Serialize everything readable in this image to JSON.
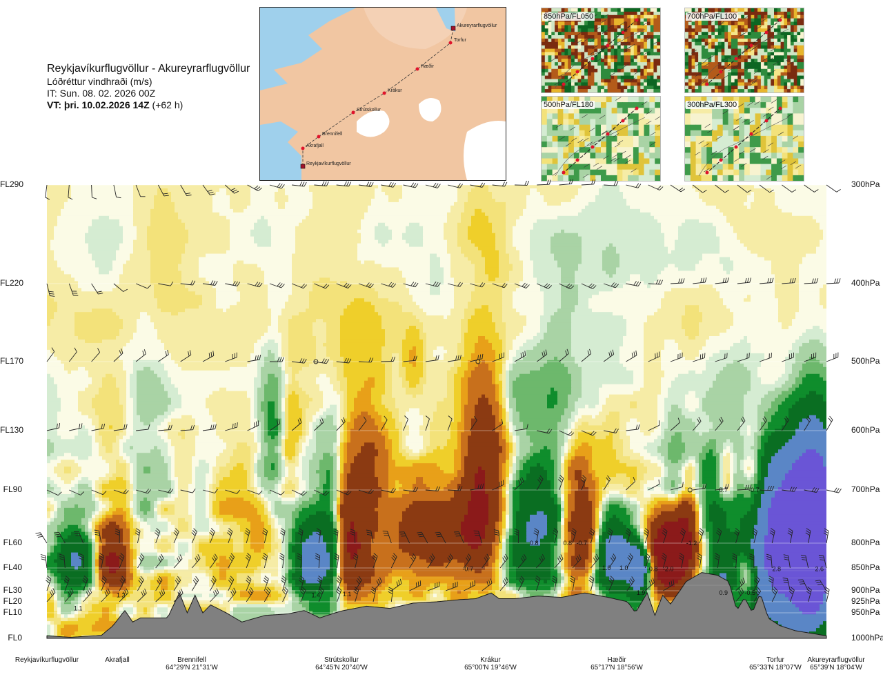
{
  "header": {
    "route": "Reykjavíkurflugvöllur - Akureyrarflugvöllur",
    "variable": "Lóðréttur vindhraði (m/s)",
    "issue_time": "IT: Sun. 08. 02. 2026 00Z",
    "valid_time": "VT: þri. 10.02.2026 14Z",
    "lead_time": "(+62 h)"
  },
  "route_map": {
    "waypoints": [
      "Akureyrarflugvöllur",
      "Torfur",
      "Hæðir",
      "Krákur",
      "Strútskollur",
      "Brennifell",
      "Akrafjall",
      "Reykjavíkurflugvöllur"
    ]
  },
  "insets": [
    {
      "label": "850hPa/FL050"
    },
    {
      "label": "700hPa/FL100"
    },
    {
      "label": "500hPa/FL180"
    },
    {
      "label": "300hPa/FL300"
    }
  ],
  "chart_data": {
    "type": "heatmap",
    "title": "Lóðréttur vindhraði (m/s)",
    "y_flight_levels": [
      {
        "label": "FL290",
        "pressure_hpa": 300
      },
      {
        "label": "FL220",
        "pressure_hpa": 400
      },
      {
        "label": "FL170",
        "pressure_hpa": 500
      },
      {
        "label": "FL130",
        "pressure_hpa": 600
      },
      {
        "label": "FL90",
        "pressure_hpa": 700
      },
      {
        "label": "FL60",
        "pressure_hpa": 800
      },
      {
        "label": "FL40",
        "pressure_hpa": 850
      },
      {
        "label": "FL30",
        "pressure_hpa": 900
      },
      {
        "label": "FL20",
        "pressure_hpa": 925
      },
      {
        "label": "FL10",
        "pressure_hpa": 950
      },
      {
        "label": "FL0",
        "pressure_hpa": 1000
      }
    ],
    "y_pressure_labels": [
      "300hPa",
      "400hPa",
      "500hPa",
      "600hPa",
      "700hPa",
      "800hPa",
      "850hPa",
      "900hPa",
      "925hPa",
      "950hPa",
      "1000hPa"
    ],
    "ylim_hpa": [
      1000,
      300
    ],
    "x_locations": [
      {
        "name": "Reykjavíkurflugvöllur",
        "coord": "",
        "frac": 0.0
      },
      {
        "name": "Akrafjall",
        "coord": "",
        "frac": 0.09
      },
      {
        "name": "Brennifell",
        "coord": "64°29'N 21°31'W",
        "frac": 0.19
      },
      {
        "name": "Strútskollur",
        "coord": "64°45'N 20°40'W",
        "frac": 0.37
      },
      {
        "name": "Krákur",
        "coord": "65°00'N 19°46'W",
        "frac": 0.57
      },
      {
        "name": "Hæðir",
        "coord": "65°17'N 18°56'W",
        "frac": 0.75
      },
      {
        "name": "Torfur",
        "coord": "65°33'N 18°07'W",
        "frac": 0.94
      },
      {
        "name": "Akureyrarflugvöllur",
        "coord": "65°39'N 18°04'W",
        "frac": 1.0
      }
    ],
    "color_levels": [
      {
        "min": -3.0,
        "max": -1.0,
        "color": "#8b1a1a"
      },
      {
        "min": -1.0,
        "max": -0.5,
        "color": "#8b3a12"
      },
      {
        "min": -0.5,
        "max": -0.3,
        "color": "#c8701c"
      },
      {
        "min": -0.3,
        "max": -0.2,
        "color": "#e8a019"
      },
      {
        "min": -0.2,
        "max": -0.1,
        "color": "#efcf2a"
      },
      {
        "min": -0.1,
        "max": -0.05,
        "color": "#f3e27a"
      },
      {
        "min": -0.05,
        "max": 0.0,
        "color": "#f6eca6"
      },
      {
        "min": 0.0,
        "max": 0.05,
        "color": "#fbfbe6"
      },
      {
        "min": 0.05,
        "max": 0.1,
        "color": "#d5ecd2"
      },
      {
        "min": 0.1,
        "max": 0.2,
        "color": "#a9d3a5"
      },
      {
        "min": 0.2,
        "max": 0.3,
        "color": "#6db86c"
      },
      {
        "min": 0.3,
        "max": 0.5,
        "color": "#0f8d2c"
      },
      {
        "min": 0.5,
        "max": 1.0,
        "color": "#0a6e22"
      },
      {
        "min": 1.0,
        "max": 2.0,
        "color": "#5a86c6"
      },
      {
        "min": 2.0,
        "max": 5.0,
        "color": "#6a55d6"
      }
    ],
    "annotations": [
      {
        "text": "1.1",
        "frac": 0.04,
        "hpa": 940
      },
      {
        "text": "1.2",
        "frac": 0.095,
        "hpa": 910
      },
      {
        "text": "1.4",
        "frac": 0.345,
        "hpa": 910
      },
      {
        "text": "1.1",
        "frac": 0.385,
        "hpa": 908
      },
      {
        "text": "-0.7",
        "frac": 0.54,
        "hpa": 852
      },
      {
        "text": "0.8",
        "frac": 0.625,
        "hpa": 800
      },
      {
        "text": "0.8",
        "frac": 0.668,
        "hpa": 800
      },
      {
        "text": "-0.7",
        "frac": 0.686,
        "hpa": 800
      },
      {
        "text": "1.0",
        "frac": 0.718,
        "hpa": 850
      },
      {
        "text": "1.0",
        "frac": 0.74,
        "hpa": 850
      },
      {
        "text": "1.9",
        "frac": 0.762,
        "hpa": 905
      },
      {
        "text": "0.8",
        "frac": 0.778,
        "hpa": 852
      },
      {
        "text": "-2.0",
        "frac": 0.797,
        "hpa": 852
      },
      {
        "text": "-1.2",
        "frac": 0.827,
        "hpa": 800
      },
      {
        "text": "0.9",
        "frac": 0.868,
        "hpa": 905
      },
      {
        "text": "0.7",
        "frac": 0.868,
        "hpa": 700
      },
      {
        "text": "-0.7",
        "frac": 0.907,
        "hpa": 700
      },
      {
        "text": "-0.5",
        "frac": 0.902,
        "hpa": 905
      },
      {
        "text": "2.8",
        "frac": 0.936,
        "hpa": 852
      },
      {
        "text": "2.6",
        "frac": 0.991,
        "hpa": 852
      }
    ],
    "grid": true,
    "terrain": "grey"
  },
  "colors": {
    "terrain": "#808080",
    "terrain_edge": "#1a1a1a",
    "map_sea": "#9fd0ec",
    "map_land": "#f1c6a2",
    "map_glacier": "#ffffff",
    "route_point": "#e0132b"
  }
}
